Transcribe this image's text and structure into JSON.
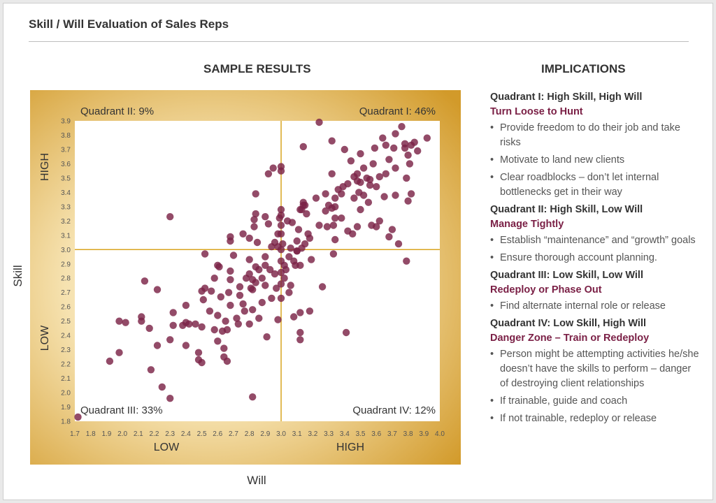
{
  "header": {
    "title": "Skill / Will Evaluation of Sales Reps"
  },
  "left": {
    "heading": "SAMPLE RESULTS"
  },
  "right": {
    "heading": "IMPLICATIONS"
  },
  "implications": [
    {
      "title": "Quadrant I: High Skill, High Will",
      "action": "Turn Loose to Hunt",
      "bullets": [
        "Provide freedom to do their job and take risks",
        "Motivate to land new clients",
        "Clear roadblocks – don’t let internal bottlenecks get in their way"
      ]
    },
    {
      "title": "Quadrant II: High Skill, Low Will",
      "action": "Manage Tightly",
      "bullets": [
        "Establish “maintenance” and “growth” goals",
        "Ensure thorough account planning."
      ]
    },
    {
      "title": "Quadrant III: Low Skill, Low Will",
      "action": "Redeploy or Phase Out",
      "bullets": [
        "Find alternate internal role or release"
      ]
    },
    {
      "title": "Quadrant IV: Low Skill, High Will",
      "action": "Danger Zone – Train or Redeploy",
      "bullets": [
        "Person might be attempting activities he/she doesn’t have the skills to perform – danger of destroying client relationships",
        "If trainable, guide and coach",
        "If not trainable, redeploy or release"
      ]
    }
  ],
  "colors": {
    "point": "#7b2347",
    "divider": "#d9a520",
    "gold_dark": "#c8901f",
    "gold_light": "#fbf1d5",
    "accent_text": "#7a1f45"
  },
  "chart_data": {
    "type": "scatter",
    "xlabel": "Will",
    "ylabel": "Skill",
    "xlim": [
      1.7,
      4.0
    ],
    "ylim": [
      1.8,
      3.9
    ],
    "xticks": [
      "1.7",
      "1.8",
      "1.9",
      "2.0",
      "2.1",
      "2.2",
      "2.3",
      "2.4",
      "2.5",
      "2.6",
      "2.7",
      "2.8",
      "2.9",
      "3.0",
      "3.1",
      "3.2",
      "3.3",
      "3.4",
      "3.5",
      "3.6",
      "3.7",
      "3.8",
      "3.9",
      "4.0"
    ],
    "yticks": [
      "1.8",
      "1.9",
      "2.0",
      "2.1",
      "2.2",
      "2.3",
      "2.4",
      "2.5",
      "2.6",
      "2.7",
      "2.8",
      "2.9",
      "3.0",
      "3.1",
      "3.2",
      "3.3",
      "3.4",
      "3.5",
      "3.6",
      "3.7",
      "3.8",
      "3.9"
    ],
    "x_zone_labels": {
      "low": "LOW",
      "high": "HIGH"
    },
    "y_zone_labels": {
      "low": "LOW",
      "high": "HIGH"
    },
    "divider": {
      "x": 3.0,
      "y": 3.0
    },
    "quadrant_labels": {
      "q1": "Quadrant I: 46%",
      "q2": "Quadrant II: 9%",
      "q3": "Quadrant III: 33%",
      "q4": "Quadrant IV: 12%"
    },
    "points": [
      [
        1.72,
        1.83
      ],
      [
        1.92,
        2.22
      ],
      [
        1.98,
        2.28
      ],
      [
        1.98,
        2.5
      ],
      [
        2.02,
        2.49
      ],
      [
        2.12,
        2.53
      ],
      [
        2.12,
        2.5
      ],
      [
        2.14,
        2.78
      ],
      [
        2.18,
        2.16
      ],
      [
        2.17,
        2.45
      ],
      [
        2.22,
        2.72
      ],
      [
        2.22,
        2.33
      ],
      [
        2.25,
        2.04
      ],
      [
        2.3,
        1.96
      ],
      [
        2.3,
        3.23
      ],
      [
        2.3,
        2.37
      ],
      [
        2.32,
        2.47
      ],
      [
        2.32,
        2.56
      ],
      [
        2.38,
        2.47
      ],
      [
        2.4,
        2.49
      ],
      [
        2.4,
        2.33
      ],
      [
        2.42,
        2.48
      ],
      [
        2.4,
        2.61
      ],
      [
        2.46,
        2.48
      ],
      [
        2.48,
        2.28
      ],
      [
        2.48,
        2.23
      ],
      [
        2.5,
        2.21
      ],
      [
        2.5,
        2.46
      ],
      [
        2.51,
        2.65
      ],
      [
        2.5,
        2.71
      ],
      [
        2.52,
        2.73
      ],
      [
        2.52,
        2.97
      ],
      [
        2.55,
        2.57
      ],
      [
        2.56,
        2.71
      ],
      [
        2.58,
        2.8
      ],
      [
        2.6,
        2.89
      ],
      [
        2.58,
        2.44
      ],
      [
        2.6,
        2.36
      ],
      [
        2.6,
        2.54
      ],
      [
        2.61,
        2.88
      ],
      [
        2.62,
        2.67
      ],
      [
        2.63,
        2.43
      ],
      [
        2.64,
        2.25
      ],
      [
        2.64,
        2.31
      ],
      [
        2.65,
        2.5
      ],
      [
        2.66,
        2.44
      ],
      [
        2.66,
        2.22
      ],
      [
        2.67,
        2.7
      ],
      [
        2.68,
        2.61
      ],
      [
        2.68,
        2.79
      ],
      [
        2.68,
        3.06
      ],
      [
        2.68,
        3.09
      ],
      [
        2.68,
        2.85
      ],
      [
        2.7,
        2.96
      ],
      [
        2.72,
        2.52
      ],
      [
        2.73,
        2.48
      ],
      [
        2.74,
        2.68
      ],
      [
        2.74,
        2.74
      ],
      [
        2.76,
        2.62
      ],
      [
        2.76,
        3.11
      ],
      [
        2.77,
        2.57
      ],
      [
        2.78,
        2.8
      ],
      [
        2.8,
        2.93
      ],
      [
        2.8,
        2.83
      ],
      [
        2.8,
        3.08
      ],
      [
        2.8,
        2.48
      ],
      [
        2.81,
        2.73
      ],
      [
        2.82,
        2.72
      ],
      [
        2.82,
        2.58
      ],
      [
        2.82,
        2.79
      ],
      [
        2.83,
        3.16
      ],
      [
        2.83,
        3.21
      ],
      [
        2.82,
        1.97
      ],
      [
        2.84,
        2.88
      ],
      [
        2.84,
        2.77
      ],
      [
        2.84,
        3.25
      ],
      [
        2.84,
        3.39
      ],
      [
        2.85,
        3.05
      ],
      [
        2.86,
        2.86
      ],
      [
        2.86,
        2.52
      ],
      [
        2.88,
        2.8
      ],
      [
        2.88,
        2.63
      ],
      [
        2.9,
        3.23
      ],
      [
        2.9,
        2.89
      ],
      [
        2.9,
        2.95
      ],
      [
        2.9,
        2.75
      ],
      [
        2.91,
        2.39
      ],
      [
        2.92,
        3.53
      ],
      [
        2.92,
        3.18
      ],
      [
        2.93,
        2.86
      ],
      [
        2.94,
        2.66
      ],
      [
        2.94,
        3.02
      ],
      [
        2.95,
        3.57
      ],
      [
        2.96,
        3.05
      ],
      [
        2.96,
        2.83
      ],
      [
        2.97,
        2.73
      ],
      [
        2.98,
        3.11
      ],
      [
        2.98,
        3.02
      ],
      [
        2.98,
        2.51
      ],
      [
        2.99,
        3.22
      ],
      [
        3.0,
        2.66
      ],
      [
        3.0,
        2.84
      ],
      [
        3.0,
        2.76
      ],
      [
        3.0,
        3.0
      ],
      [
        3.0,
        3.11
      ],
      [
        3.0,
        3.28
      ],
      [
        3.0,
        3.17
      ],
      [
        3.0,
        3.24
      ],
      [
        3.0,
        2.92
      ],
      [
        3.0,
        3.58
      ],
      [
        3.0,
        3.55
      ],
      [
        3.01,
        3.04
      ],
      [
        3.02,
        2.89
      ],
      [
        3.02,
        2.8
      ],
      [
        3.03,
        2.86
      ],
      [
        3.04,
        3.2
      ],
      [
        3.05,
        2.95
      ],
      [
        3.05,
        2.7
      ],
      [
        3.06,
        3.01
      ],
      [
        3.06,
        2.75
      ],
      [
        3.07,
        3.19
      ],
      [
        3.08,
        2.92
      ],
      [
        3.08,
        2.53
      ],
      [
        3.09,
        2.89
      ],
      [
        3.1,
        3.06
      ],
      [
        3.1,
        2.99
      ],
      [
        3.1,
        2.99
      ],
      [
        3.11,
        3.14
      ],
      [
        3.12,
        3.28
      ],
      [
        3.12,
        2.56
      ],
      [
        3.12,
        2.37
      ],
      [
        3.12,
        2.42
      ],
      [
        3.12,
        2.89
      ],
      [
        3.13,
        3.28
      ],
      [
        3.13,
        3.01
      ],
      [
        3.14,
        3.31
      ],
      [
        3.14,
        3.72
      ],
      [
        3.14,
        3.33
      ],
      [
        3.15,
        3.04
      ],
      [
        3.15,
        3.31
      ],
      [
        3.16,
        3.25
      ],
      [
        3.17,
        3.11
      ],
      [
        3.18,
        3.08
      ],
      [
        3.18,
        2.57
      ],
      [
        3.19,
        2.93
      ],
      [
        3.22,
        3.36
      ],
      [
        3.24,
        3.89
      ],
      [
        3.24,
        3.17
      ],
      [
        3.26,
        2.74
      ],
      [
        3.28,
        3.39
      ],
      [
        3.28,
        3.27
      ],
      [
        3.29,
        3.16
      ],
      [
        3.3,
        3.31
      ],
      [
        3.32,
        3.29
      ],
      [
        3.32,
        3.76
      ],
      [
        3.32,
        3.53
      ],
      [
        3.33,
        3.17
      ],
      [
        3.33,
        2.97
      ],
      [
        3.34,
        3.36
      ],
      [
        3.34,
        3.22
      ],
      [
        3.34,
        3.07
      ],
      [
        3.34,
        3.3
      ],
      [
        3.36,
        3.42
      ],
      [
        3.38,
        3.39
      ],
      [
        3.38,
        3.22
      ],
      [
        3.39,
        3.44
      ],
      [
        3.4,
        3.7
      ],
      [
        3.41,
        2.42
      ],
      [
        3.42,
        3.46
      ],
      [
        3.42,
        3.13
      ],
      [
        3.44,
        3.62
      ],
      [
        3.45,
        3.11
      ],
      [
        3.46,
        3.36
      ],
      [
        3.46,
        3.51
      ],
      [
        3.48,
        3.53
      ],
      [
        3.48,
        3.48
      ],
      [
        3.48,
        3.16
      ],
      [
        3.49,
        3.4
      ],
      [
        3.5,
        3.67
      ],
      [
        3.5,
        3.47
      ],
      [
        3.5,
        3.28
      ],
      [
        3.52,
        3.38
      ],
      [
        3.52,
        3.57
      ],
      [
        3.54,
        3.5
      ],
      [
        3.55,
        3.33
      ],
      [
        3.56,
        3.49
      ],
      [
        3.56,
        3.45
      ],
      [
        3.57,
        3.17
      ],
      [
        3.58,
        3.6
      ],
      [
        3.59,
        3.71
      ],
      [
        3.6,
        3.44
      ],
      [
        3.6,
        3.16
      ],
      [
        3.62,
        3.51
      ],
      [
        3.62,
        3.2
      ],
      [
        3.64,
        3.78
      ],
      [
        3.65,
        3.37
      ],
      [
        3.66,
        3.73
      ],
      [
        3.66,
        3.53
      ],
      [
        3.68,
        3.63
      ],
      [
        3.68,
        3.09
      ],
      [
        3.7,
        3.14
      ],
      [
        3.71,
        3.71
      ],
      [
        3.72,
        3.57
      ],
      [
        3.72,
        3.81
      ],
      [
        3.72,
        3.38
      ],
      [
        3.74,
        3.04
      ],
      [
        3.76,
        3.86
      ],
      [
        3.78,
        3.71
      ],
      [
        3.78,
        3.74
      ],
      [
        3.79,
        3.5
      ],
      [
        3.79,
        2.92
      ],
      [
        3.8,
        3.66
      ],
      [
        3.8,
        3.34
      ],
      [
        3.81,
        3.6
      ],
      [
        3.82,
        3.73
      ],
      [
        3.82,
        3.39
      ],
      [
        3.84,
        3.75
      ],
      [
        3.86,
        3.69
      ],
      [
        3.92,
        3.78
      ]
    ]
  }
}
